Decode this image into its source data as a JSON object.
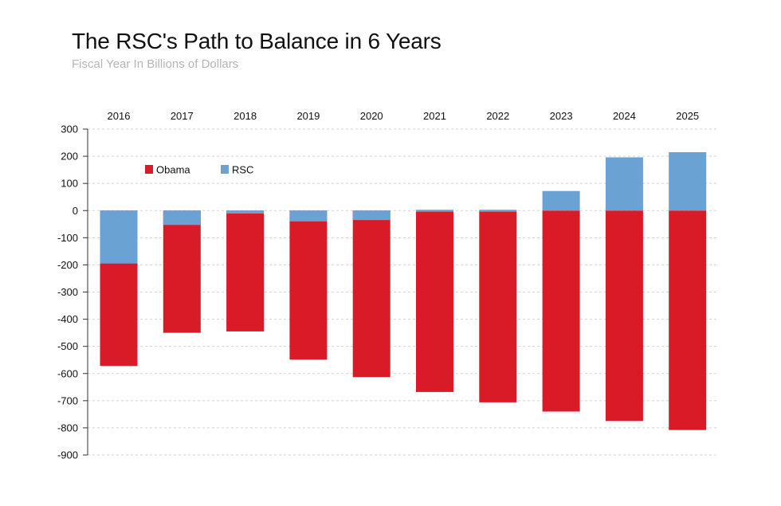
{
  "chart_data": {
    "type": "bar",
    "title": "The RSC's Path to Balance in 6 Years",
    "subtitle": "Fiscal Year In Billions of Dollars",
    "xlabel": "",
    "ylabel": "",
    "categories": [
      "2016",
      "2017",
      "2018",
      "2019",
      "2020",
      "2021",
      "2022",
      "2023",
      "2024",
      "2025"
    ],
    "series": [
      {
        "name": "Obama",
        "values": [
          -572,
          -450,
          -445,
          -549,
          -613,
          -668,
          -706,
          -740,
          -775,
          -808
        ]
      },
      {
        "name": "RSC",
        "values": [
          -195,
          -53,
          -11,
          -40,
          -35,
          0,
          0,
          72,
          196,
          215
        ]
      }
    ],
    "ylim": [
      -900,
      300
    ],
    "yticks": [
      300,
      200,
      100,
      0,
      -100,
      -200,
      -300,
      -400,
      -500,
      -600,
      -700,
      -800,
      -900
    ],
    "colors": {
      "Obama": "#d91a27",
      "RSC": "#69a2d3"
    },
    "grid": true,
    "legend_position": "top-left",
    "x_labels_position": "top"
  }
}
